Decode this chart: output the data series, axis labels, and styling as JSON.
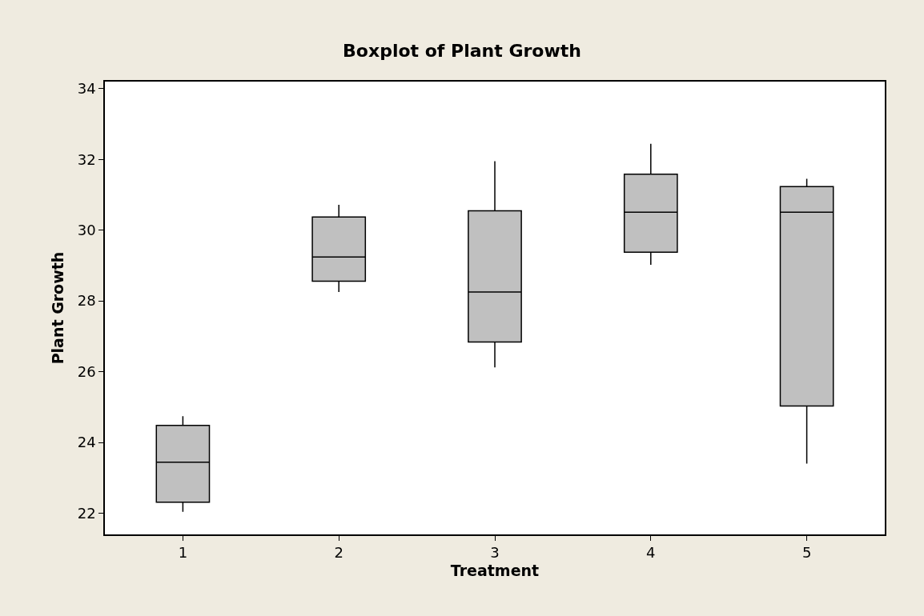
{
  "chart_data": {
    "type": "box",
    "title": "Boxplot of Plant Growth",
    "xlabel": "Treatment",
    "ylabel": "Plant Growth",
    "categories": [
      "1",
      "2",
      "3",
      "4",
      "5"
    ],
    "boxes": [
      {
        "low": 22.04,
        "q1": 22.31,
        "median": 23.44,
        "q3": 24.48,
        "high": 24.74
      },
      {
        "low": 28.25,
        "q1": 28.56,
        "median": 29.24,
        "q3": 30.37,
        "high": 30.72
      },
      {
        "low": 26.12,
        "q1": 26.84,
        "median": 28.25,
        "q3": 30.55,
        "high": 31.95
      },
      {
        "low": 29.02,
        "q1": 29.38,
        "median": 30.51,
        "q3": 31.58,
        "high": 32.44
      },
      {
        "low": 23.4,
        "q1": 25.03,
        "median": 30.51,
        "q3": 31.23,
        "high": 31.45
      }
    ],
    "color": "#c0c0c0",
    "ylim": [
      21.4,
      34.2
    ],
    "yticks": [
      22,
      24,
      26,
      28,
      30,
      32,
      34
    ],
    "grid": false
  }
}
